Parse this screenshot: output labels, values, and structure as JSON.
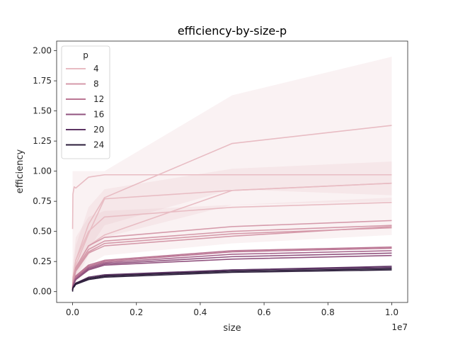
{
  "chart_data": {
    "type": "line",
    "title": "efficiency-by-size-p",
    "xlabel": "size",
    "ylabel": "efficiency",
    "x_offset_label": "1e7",
    "xlim": [
      -500000,
      10500000
    ],
    "ylim": [
      -0.09,
      2.08
    ],
    "x_ticks": [
      0,
      2000000,
      4000000,
      6000000,
      8000000,
      10000000
    ],
    "x_tick_labels": [
      "0.0",
      "0.2",
      "0.4",
      "0.6",
      "0.8",
      "1.0"
    ],
    "y_ticks": [
      0,
      0.25,
      0.5,
      0.75,
      1.0,
      1.25,
      1.5,
      1.75,
      2.0
    ],
    "y_tick_labels": [
      "0.00",
      "0.25",
      "0.50",
      "0.75",
      "1.00",
      "1.25",
      "1.50",
      "1.75",
      "2.00"
    ],
    "grid": false,
    "legend": {
      "title": "p",
      "placement": "top-left",
      "entries": [
        {
          "label": "4",
          "color": "#e8bcc3"
        },
        {
          "label": "8",
          "color": "#d59aaa"
        },
        {
          "label": "12",
          "color": "#bb7694"
        },
        {
          "label": "16",
          "color": "#91537f"
        },
        {
          "label": "20",
          "color": "#5d3564"
        },
        {
          "label": "24",
          "color": "#2b1d3a"
        }
      ]
    },
    "bands": [
      {
        "color": "#e8bcc3",
        "x": [
          0,
          100000,
          500000,
          1000000,
          5000000,
          10000000
        ],
        "lower": [
          0.05,
          0.12,
          0.35,
          0.55,
          0.85,
          0.8
        ],
        "upper": [
          1.0,
          1.0,
          1.0,
          1.0,
          1.63,
          1.95
        ]
      },
      {
        "color": "#e8bcc3",
        "x": [
          0,
          100000,
          500000,
          1000000,
          5000000,
          10000000
        ],
        "lower": [
          0.03,
          0.1,
          0.3,
          0.45,
          0.72,
          0.75
        ],
        "upper": [
          0.15,
          0.38,
          0.7,
          0.85,
          1.02,
          1.08
        ]
      },
      {
        "color": "#e8bcc3",
        "x": [
          0,
          100000,
          500000,
          1000000,
          5000000,
          10000000
        ],
        "lower": [
          0.02,
          0.06,
          0.22,
          0.3,
          0.4,
          0.47
        ],
        "upper": [
          0.2,
          0.45,
          0.62,
          0.67,
          0.72,
          0.78
        ]
      }
    ],
    "series": [
      {
        "color": "#e8bcc3",
        "x": [
          0,
          10000,
          50000,
          100000,
          500000,
          1000000,
          5000000,
          10000000
        ],
        "values": [
          0.52,
          0.81,
          0.87,
          0.86,
          0.95,
          0.97,
          0.97,
          0.97
        ]
      },
      {
        "color": "#e8bcc3",
        "x": [
          0,
          10000,
          50000,
          100000,
          500000,
          1000000,
          5000000,
          10000000
        ],
        "values": [
          0.03,
          0.12,
          0.18,
          0.26,
          0.56,
          0.78,
          1.23,
          1.38
        ]
      },
      {
        "color": "#e8bcc3",
        "x": [
          0,
          10000,
          50000,
          100000,
          500000,
          1000000,
          5000000,
          10000000
        ],
        "values": [
          0.03,
          0.1,
          0.16,
          0.22,
          0.48,
          0.77,
          0.84,
          0.9
        ]
      },
      {
        "color": "#e8bcc3",
        "x": [
          0,
          10000,
          50000,
          100000,
          500000,
          1000000,
          5000000,
          10000000
        ],
        "values": [
          0.02,
          0.09,
          0.14,
          0.2,
          0.38,
          0.47,
          0.84,
          0.9
        ]
      },
      {
        "color": "#e8bcc3",
        "x": [
          0,
          10000,
          50000,
          100000,
          500000,
          1000000,
          5000000,
          10000000
        ],
        "values": [
          0.02,
          0.09,
          0.15,
          0.26,
          0.5,
          0.62,
          0.7,
          0.74
        ]
      },
      {
        "color": "#d59aaa",
        "x": [
          0,
          10000,
          50000,
          100000,
          500000,
          1000000,
          5000000,
          10000000
        ],
        "values": [
          0.02,
          0.07,
          0.14,
          0.2,
          0.38,
          0.45,
          0.54,
          0.59
        ]
      },
      {
        "color": "#d59aaa",
        "x": [
          0,
          10000,
          50000,
          100000,
          500000,
          1000000,
          5000000,
          10000000
        ],
        "values": [
          0.02,
          0.07,
          0.13,
          0.19,
          0.35,
          0.42,
          0.5,
          0.55
        ]
      },
      {
        "color": "#d59aaa",
        "x": [
          0,
          10000,
          50000,
          100000,
          500000,
          1000000,
          5000000,
          10000000
        ],
        "values": [
          0.02,
          0.06,
          0.12,
          0.18,
          0.33,
          0.4,
          0.48,
          0.53
        ]
      },
      {
        "color": "#d59aaa",
        "x": [
          0,
          10000,
          50000,
          100000,
          500000,
          1000000,
          5000000,
          10000000
        ],
        "values": [
          0.02,
          0.06,
          0.11,
          0.17,
          0.32,
          0.38,
          0.46,
          0.54
        ]
      },
      {
        "color": "#bb7694",
        "x": [
          0,
          10000,
          50000,
          100000,
          500000,
          1000000,
          5000000,
          10000000
        ],
        "values": [
          0.01,
          0.05,
          0.09,
          0.13,
          0.22,
          0.26,
          0.34,
          0.37
        ]
      },
      {
        "color": "#bb7694",
        "x": [
          0,
          10000,
          50000,
          100000,
          500000,
          1000000,
          5000000,
          10000000
        ],
        "values": [
          0.01,
          0.05,
          0.08,
          0.12,
          0.21,
          0.25,
          0.33,
          0.36
        ]
      },
      {
        "color": "#a6638b",
        "x": [
          0,
          10000,
          50000,
          100000,
          500000,
          1000000,
          5000000,
          10000000
        ],
        "values": [
          0.01,
          0.04,
          0.08,
          0.11,
          0.2,
          0.24,
          0.31,
          0.34
        ]
      },
      {
        "color": "#91537f",
        "x": [
          0,
          10000,
          50000,
          100000,
          500000,
          1000000,
          5000000,
          10000000
        ],
        "values": [
          0.01,
          0.04,
          0.07,
          0.1,
          0.19,
          0.23,
          0.29,
          0.32
        ]
      },
      {
        "color": "#91537f",
        "x": [
          0,
          10000,
          50000,
          100000,
          500000,
          1000000,
          5000000,
          10000000
        ],
        "values": [
          0.01,
          0.04,
          0.07,
          0.1,
          0.18,
          0.22,
          0.27,
          0.3
        ]
      },
      {
        "color": "#5d3564",
        "x": [
          0,
          10000,
          50000,
          100000,
          500000,
          1000000,
          5000000,
          10000000
        ],
        "values": [
          0.01,
          0.03,
          0.05,
          0.07,
          0.12,
          0.14,
          0.18,
          0.21
        ]
      },
      {
        "color": "#5d3564",
        "x": [
          0,
          10000,
          50000,
          100000,
          500000,
          1000000,
          5000000,
          10000000
        ],
        "values": [
          0.01,
          0.03,
          0.05,
          0.07,
          0.11,
          0.13,
          0.18,
          0.2
        ]
      },
      {
        "color": "#2b1d3a",
        "x": [
          0,
          10000,
          50000,
          100000,
          500000,
          1000000,
          5000000,
          10000000
        ],
        "values": [
          0.01,
          0.03,
          0.05,
          0.07,
          0.11,
          0.13,
          0.17,
          0.19
        ]
      },
      {
        "color": "#2b1d3a",
        "x": [
          0,
          10000,
          50000,
          100000,
          500000,
          1000000,
          5000000,
          10000000
        ],
        "values": [
          0.0,
          0.03,
          0.04,
          0.06,
          0.1,
          0.12,
          0.16,
          0.18
        ]
      }
    ]
  }
}
